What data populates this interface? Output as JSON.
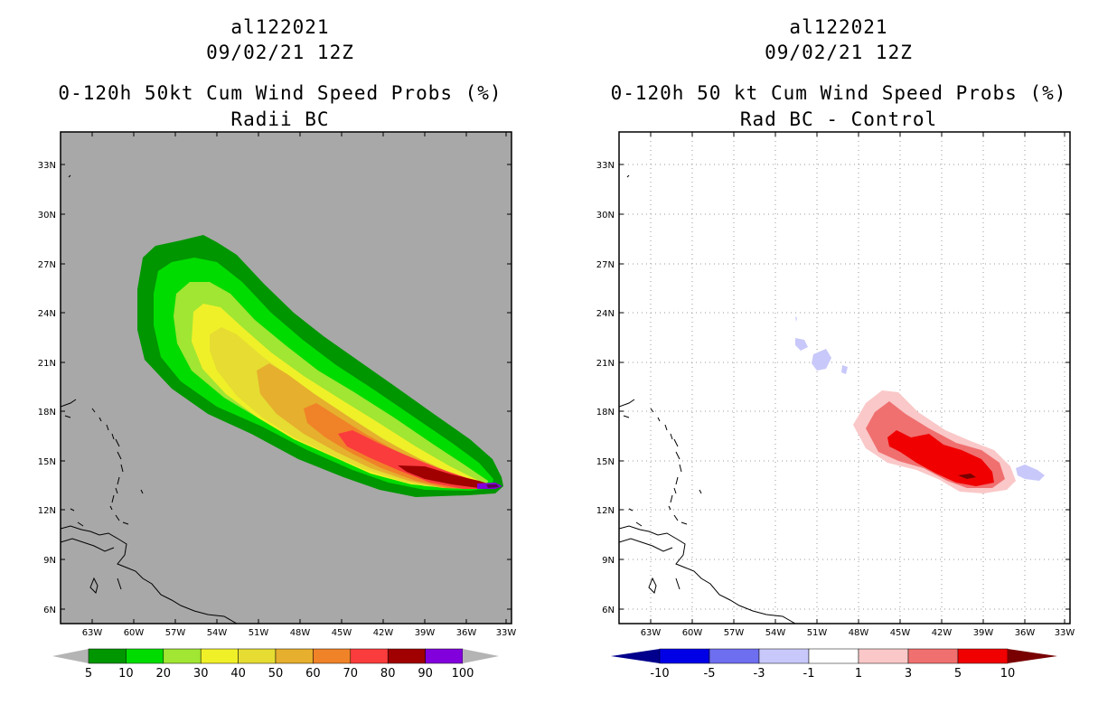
{
  "left_panel": {
    "title_lines": [
      "al122021",
      "09/02/21 12Z",
      "0-120h 50kt Cum Wind Speed Probs (%)",
      "Radii BC"
    ],
    "background_color": "#a8a8a8",
    "x_ticks": [
      "63W",
      "60W",
      "57W",
      "54W",
      "51W",
      "48W",
      "45W",
      "42W",
      "39W",
      "36W",
      "33W"
    ],
    "y_ticks": [
      "33N",
      "30N",
      "27N",
      "24N",
      "21N",
      "18N",
      "15N",
      "12N",
      "9N",
      "6N"
    ],
    "colorbar": {
      "labels": [
        "5",
        "10",
        "20",
        "30",
        "40",
        "50",
        "60",
        "70",
        "80",
        "90",
        "100"
      ],
      "colors": [
        "#009600",
        "#00dc00",
        "#a0e632",
        "#f0f028",
        "#e6dc32",
        "#e6af2d",
        "#f08228",
        "#fa3c3c",
        "#a00000",
        "#8200dc"
      ],
      "arrow_color": "#b4b4b4"
    }
  },
  "right_panel": {
    "title_lines": [
      "al122021",
      "09/02/21 12Z",
      "0-120h 50 kt Cum Wind Speed Probs (%)",
      "Rad BC - Control"
    ],
    "background_color": "#ffffff",
    "x_ticks": [
      "63W",
      "60W",
      "57W",
      "54W",
      "51W",
      "48W",
      "45W",
      "42W",
      "39W",
      "36W",
      "33W"
    ],
    "y_ticks": [
      "33N",
      "30N",
      "27N",
      "24N",
      "21N",
      "18N",
      "15N",
      "12N",
      "9N",
      "6N"
    ],
    "colorbar": {
      "labels": [
        "-10",
        "-5",
        "-3",
        "-1",
        "1",
        "3",
        "5",
        "10"
      ],
      "colors": [
        "#0000e6",
        "#6e6ef0",
        "#c8c8fa",
        "#ffffff",
        "#fac8c8",
        "#f07070",
        "#f00000"
      ],
      "low_arrow_color": "#00008c",
      "high_arrow_color": "#780000"
    }
  }
}
